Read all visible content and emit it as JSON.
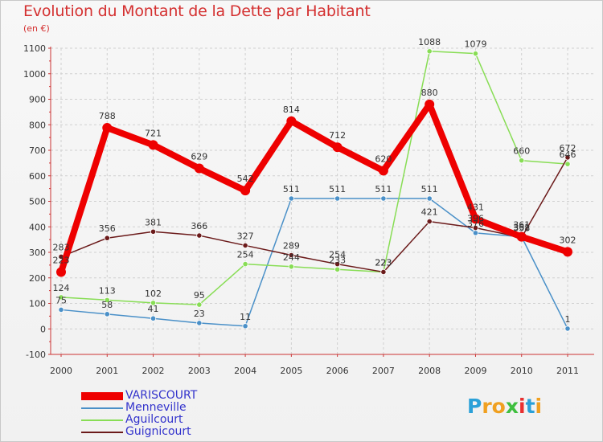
{
  "chart_data": {
    "type": "line",
    "title": "Evolution du Montant de la Dette par Habitant",
    "subtitle": "(en €)",
    "xlabel": "",
    "ylabel": "",
    "categories": [
      "2000",
      "2001",
      "2002",
      "2003",
      "2004",
      "2005",
      "2006",
      "2007",
      "2008",
      "2009",
      "2010",
      "2011"
    ],
    "ylim": [
      -100,
      1100
    ],
    "yticks": [
      "-100",
      "0",
      "100",
      "200",
      "300",
      "400",
      "500",
      "600",
      "700",
      "800",
      "900",
      "1000",
      "1100"
    ],
    "grid": true,
    "legend_position": "bottom-left",
    "series": [
      {
        "name": "VARISCOURT",
        "color": "#ee0000",
        "values": [
          223,
          788,
          721,
          629,
          542,
          814,
          712,
          620,
          880,
          431,
          361,
          302
        ],
        "labels": [
          "223",
          "788",
          "721",
          "629",
          "542",
          "814",
          "712",
          "620",
          "880",
          "431",
          "361",
          "302"
        ]
      },
      {
        "name": "Menneville",
        "color": "#4a90c8",
        "values": [
          75,
          58,
          41,
          23,
          11,
          511,
          511,
          511,
          511,
          376,
          361,
          1
        ],
        "labels": [
          "75",
          "58",
          "41",
          "23",
          "11",
          "511",
          "511",
          "511",
          "511",
          "376",
          "361",
          "1"
        ]
      },
      {
        "name": "Aguilcourt",
        "color": "#88dd55",
        "values": [
          124,
          113,
          102,
          95,
          254,
          244,
          233,
          223,
          1088,
          1079,
          660,
          646
        ],
        "labels": [
          "124",
          "113",
          "102",
          "95",
          "254",
          "244",
          "233",
          "223",
          "1088",
          "1079",
          "660",
          "646"
        ]
      },
      {
        "name": "Guignicourt",
        "color": "#6b1a1a",
        "values": [
          283,
          356,
          381,
          366,
          327,
          289,
          254,
          223,
          421,
          396,
          358,
          672
        ],
        "labels": [
          "283",
          "356",
          "381",
          "366",
          "327",
          "289",
          "254",
          "223",
          "421",
          "396",
          "358",
          "672"
        ]
      }
    ]
  },
  "logo": {
    "letters": [
      "P",
      "r",
      "o",
      "x",
      "i",
      "t",
      "i"
    ],
    "colors": [
      "#2aa0d8",
      "#f0a020",
      "#f0a020",
      "#3fbf3f",
      "#e83030",
      "#2aa0d8",
      "#f0a020"
    ]
  }
}
